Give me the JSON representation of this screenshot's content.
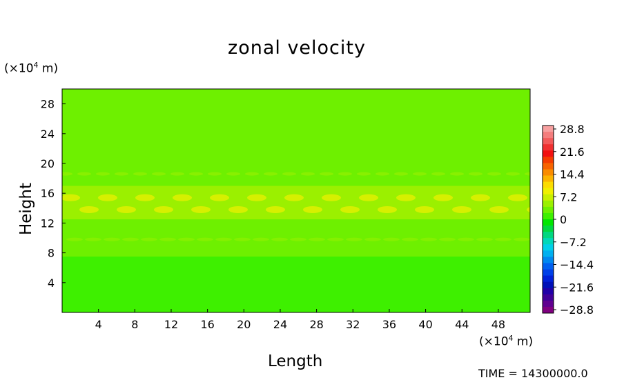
{
  "chart_data": {
    "type": "heatmap",
    "title": "zonal velocity",
    "xlabel": "Length",
    "ylabel": "Height",
    "x_unit_prefix": "(×10",
    "x_unit_exp": "4",
    "x_unit_suffix": " m)",
    "y_unit_prefix": "(×10",
    "y_unit_exp": "4",
    "y_unit_suffix": " m)",
    "xlim": [
      0,
      51.5
    ],
    "ylim": [
      0,
      30
    ],
    "x_ticks": [
      4,
      8,
      12,
      16,
      20,
      24,
      28,
      32,
      36,
      40,
      44,
      48
    ],
    "y_ticks": [
      4,
      8,
      12,
      16,
      20,
      24,
      28
    ],
    "colorbar": {
      "range": [
        -28.8,
        28.8
      ],
      "labels": [
        "28.8",
        "21.6",
        "14.4",
        "7.2",
        "0",
        "−7.2",
        "−14.4",
        "−21.6",
        "−28.8"
      ],
      "levels": [
        "#f7a0a0",
        "#f47d7d",
        "#f25a5a",
        "#f03030",
        "#f21010",
        "#f53c00",
        "#f86400",
        "#fa8c00",
        "#fcb400",
        "#fcdc00",
        "#f0f000",
        "#c8f000",
        "#9bf000",
        "#6ef000",
        "#3ef000",
        "#00e600",
        "#00d840",
        "#00d880",
        "#00d8b8",
        "#00d0e8",
        "#00b0f0",
        "#0088f0",
        "#0060f0",
        "#0040e8",
        "#0020d8",
        "#0010b8",
        "#2000a8",
        "#400098",
        "#600090",
        "#800080"
      ]
    },
    "field_bands": [
      {
        "y_from": 0,
        "y_to": 7.5,
        "value": 1.5
      },
      {
        "y_from": 7.5,
        "y_to": 11,
        "value": 3.5
      },
      {
        "y_from": 11,
        "y_to": 12.5,
        "value": 2.5
      },
      {
        "y_from": 12.5,
        "y_to": 17,
        "value": 5.5
      },
      {
        "y_from": 17,
        "y_to": 20,
        "value": 3.5
      },
      {
        "y_from": 20,
        "y_to": 30,
        "value": 2.0
      }
    ],
    "time_text": "TIME = 14300000.0"
  }
}
